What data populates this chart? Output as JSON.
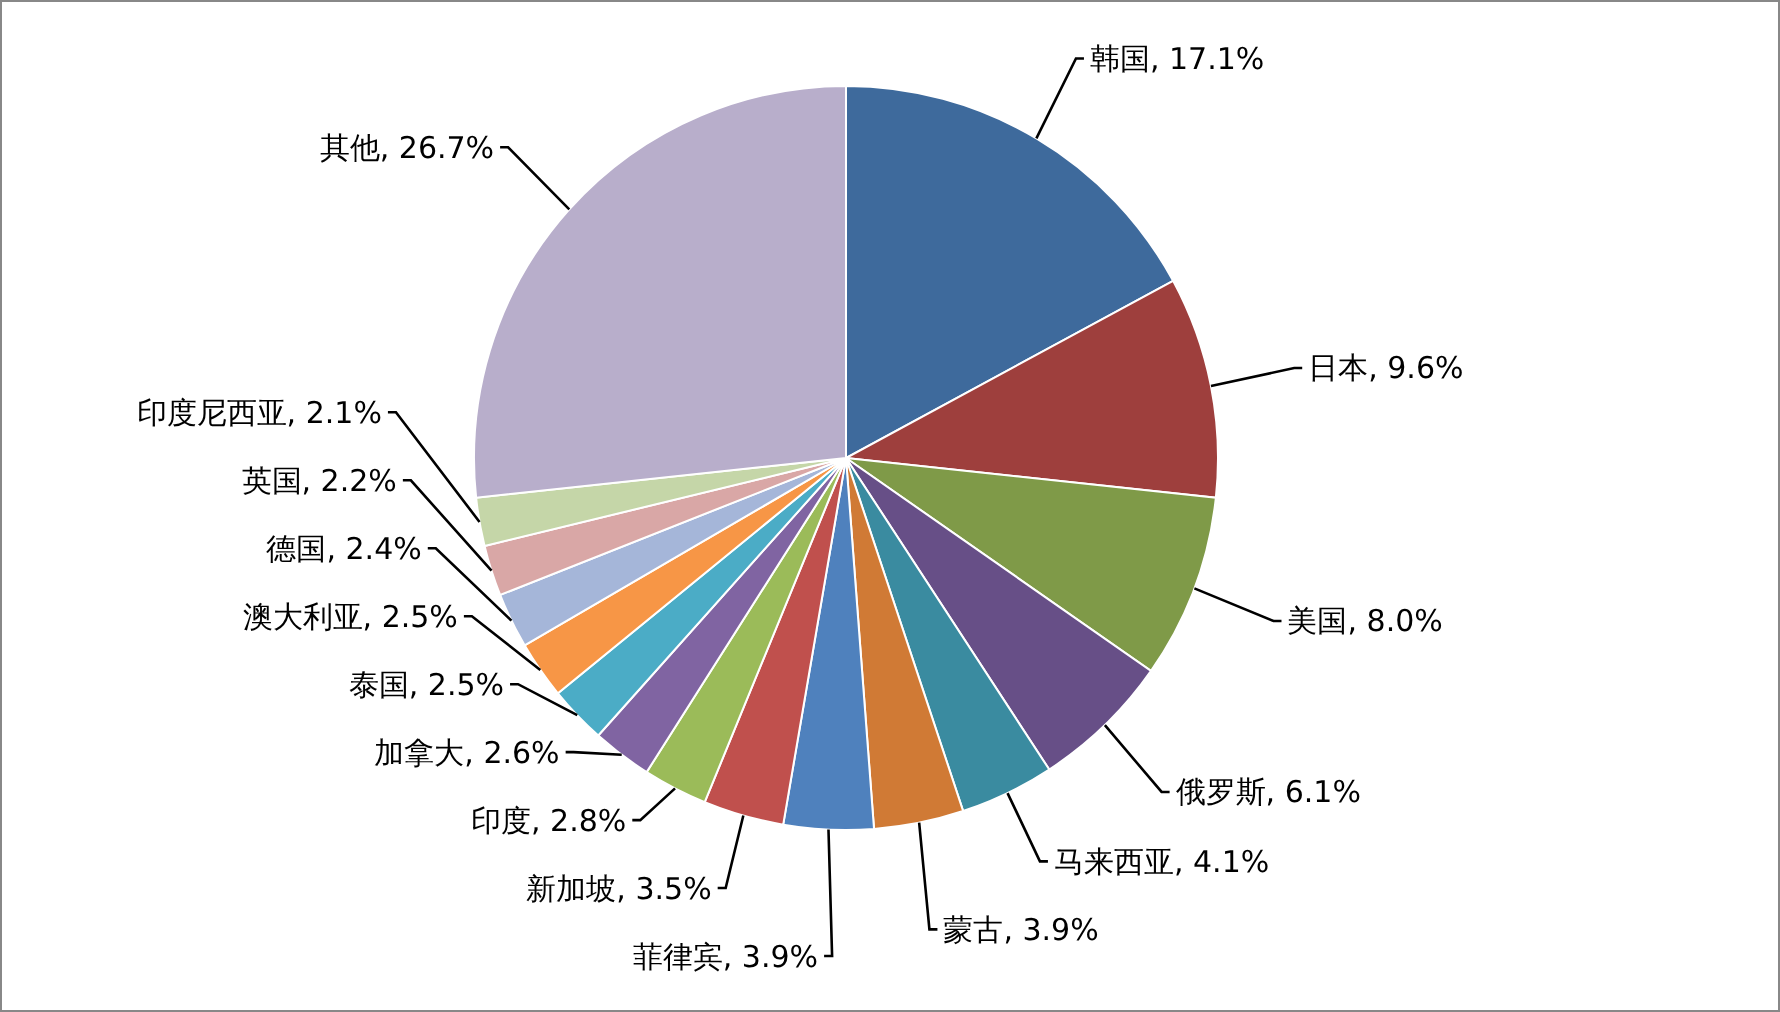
{
  "chart_data": {
    "type": "pie",
    "categories": [
      "韩国",
      "日本",
      "美国",
      "俄罗斯",
      "马来西亚",
      "蒙古",
      "菲律宾",
      "新加坡",
      "印度",
      "加拿大",
      "泰国",
      "澳大利亚",
      "德国",
      "英国",
      "印度尼西亚",
      "其他"
    ],
    "values": [
      17.1,
      9.6,
      8.0,
      6.1,
      4.1,
      3.9,
      3.9,
      3.5,
      2.8,
      2.6,
      2.5,
      2.5,
      2.4,
      2.2,
      2.1,
      26.7
    ],
    "colors": [
      "#3e6a9c",
      "#9e3f3d",
      "#7f9a48",
      "#674f87",
      "#3a8ba0",
      "#d07a35",
      "#4f81bd",
      "#c0504d",
      "#9bbb59",
      "#8064a2",
      "#4bacc6",
      "#f79646",
      "#a5b6d9",
      "#d9a7a6",
      "#c5d6a8",
      "#b8aecb"
    ],
    "value_labels": [
      "17.1%",
      "9.6%",
      "8.0%",
      "6.1%",
      "4.1%",
      "3.9%",
      "3.9%",
      "3.5%",
      "2.8%",
      "2.6%",
      "2.5%",
      "2.5%",
      "2.4%",
      "2.2%",
      "2.1%",
      "26.7%"
    ]
  }
}
